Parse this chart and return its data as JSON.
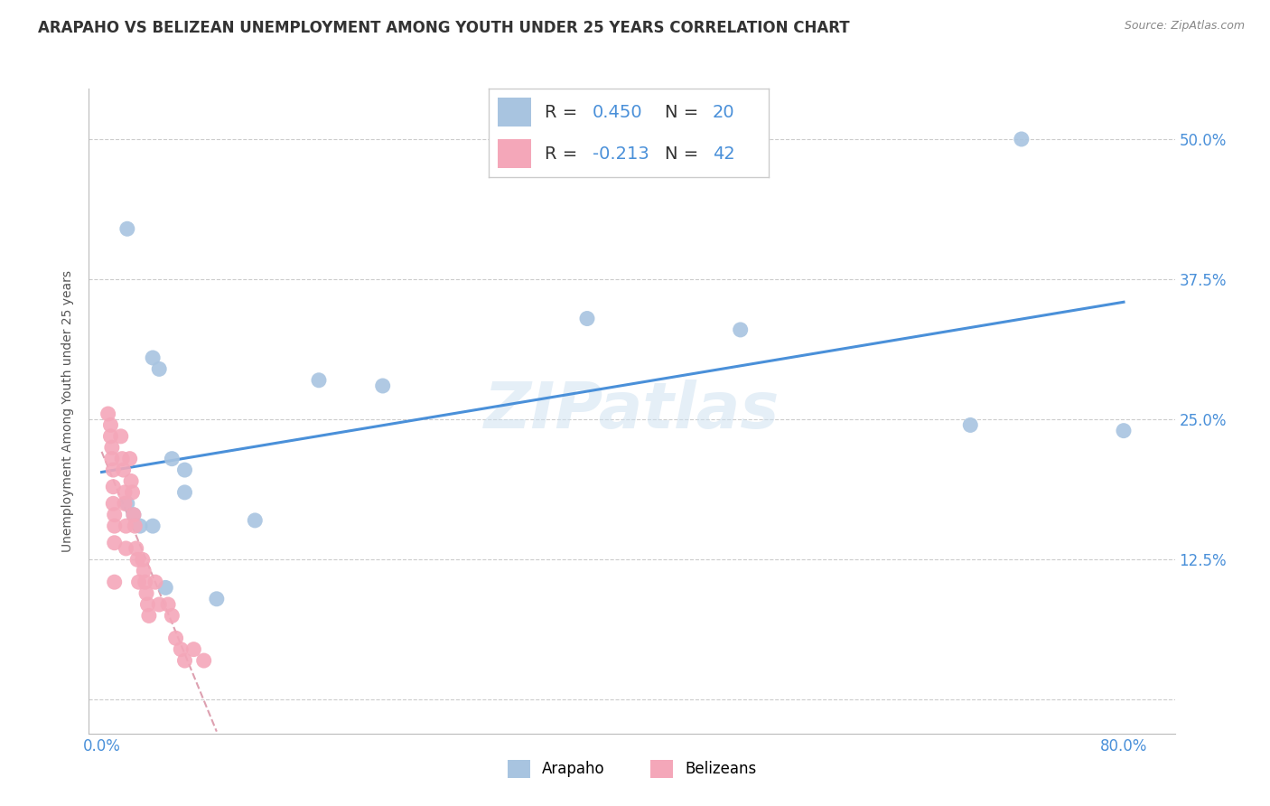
{
  "title": "ARAPAHO VS BELIZEAN UNEMPLOYMENT AMONG YOUTH UNDER 25 YEARS CORRELATION CHART",
  "source": "Source: ZipAtlas.com",
  "ylabel": "Unemployment Among Youth under 25 years",
  "xlim": [
    -0.01,
    0.84
  ],
  "ylim": [
    -0.03,
    0.545
  ],
  "yticks": [
    0.0,
    0.125,
    0.25,
    0.375,
    0.5
  ],
  "ytick_labels": [
    "",
    "12.5%",
    "25.0%",
    "37.5%",
    "50.0%"
  ],
  "xticks": [
    0.0,
    0.1,
    0.2,
    0.3,
    0.4,
    0.5,
    0.6,
    0.7,
    0.8
  ],
  "xtick_labels": [
    "0.0%",
    "",
    "",
    "",
    "",
    "",
    "",
    "",
    "80.0%"
  ],
  "arapaho_color": "#a8c4e0",
  "belizean_color": "#f4a7b9",
  "trend_arapaho_color": "#4a90d9",
  "trend_belizean_color": "#dda0b0",
  "axis_label_color": "#4a90d9",
  "grid_color": "#cccccc",
  "label_arapaho": "Arapaho",
  "label_belizean": "Belizeans",
  "watermark": "ZIPatlas",
  "arapaho_x": [
    0.02,
    0.04,
    0.045,
    0.055,
    0.065,
    0.065,
    0.02,
    0.025,
    0.03,
    0.04,
    0.12,
    0.17,
    0.22,
    0.05,
    0.09,
    0.38,
    0.5,
    0.72,
    0.8,
    0.68
  ],
  "arapaho_y": [
    0.42,
    0.305,
    0.295,
    0.215,
    0.205,
    0.185,
    0.175,
    0.165,
    0.155,
    0.155,
    0.16,
    0.285,
    0.28,
    0.1,
    0.09,
    0.34,
    0.33,
    0.5,
    0.24,
    0.245
  ],
  "belizean_x": [
    0.005,
    0.007,
    0.007,
    0.008,
    0.008,
    0.009,
    0.009,
    0.009,
    0.01,
    0.01,
    0.01,
    0.01,
    0.015,
    0.016,
    0.017,
    0.018,
    0.018,
    0.019,
    0.019,
    0.022,
    0.023,
    0.024,
    0.025,
    0.026,
    0.027,
    0.028,
    0.029,
    0.032,
    0.033,
    0.034,
    0.035,
    0.036,
    0.037,
    0.042,
    0.045,
    0.052,
    0.055,
    0.058,
    0.062,
    0.065,
    0.072,
    0.08
  ],
  "belizean_y": [
    0.255,
    0.245,
    0.235,
    0.225,
    0.215,
    0.205,
    0.19,
    0.175,
    0.165,
    0.155,
    0.14,
    0.105,
    0.235,
    0.215,
    0.205,
    0.185,
    0.175,
    0.155,
    0.135,
    0.215,
    0.195,
    0.185,
    0.165,
    0.155,
    0.135,
    0.125,
    0.105,
    0.125,
    0.115,
    0.105,
    0.095,
    0.085,
    0.075,
    0.105,
    0.085,
    0.085,
    0.075,
    0.055,
    0.045,
    0.035,
    0.045,
    0.035
  ],
  "background_color": "#ffffff",
  "title_fontsize": 12,
  "axis_label_fontsize": 10,
  "tick_fontsize": 12,
  "legend_fontsize": 14
}
